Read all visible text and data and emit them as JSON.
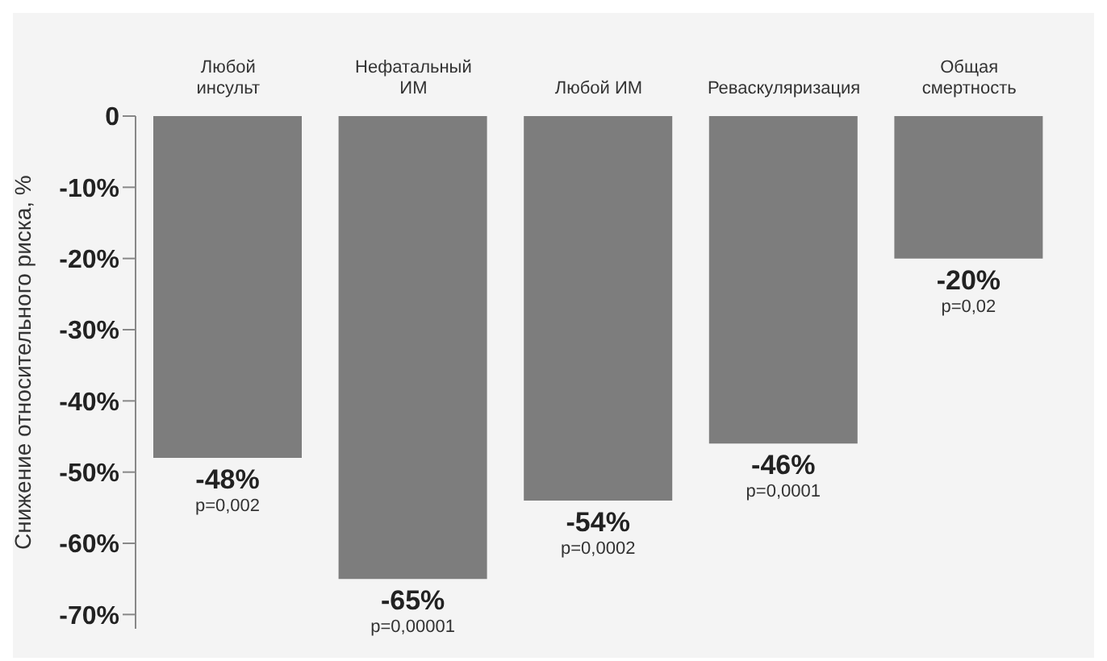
{
  "chart_data": {
    "type": "bar",
    "categories": [
      "Любой\nинсульт",
      "Нефатальный\nИМ",
      "Любой ИМ",
      "Реваскуляризация",
      "Общая\nсмертность"
    ],
    "values": [
      -48,
      -65,
      -54,
      -46,
      -20
    ],
    "color": "#7d7d7d",
    "value_labels": [
      "-48%",
      "-65%",
      "-54%",
      "-46%",
      "-20%"
    ],
    "ylabel": "Снижение относительного риска, %",
    "ylim": [
      -72,
      0
    ],
    "yticks": [
      {
        "value": -70,
        "label": "-70%"
      },
      {
        "value": -60,
        "label": "-60%"
      },
      {
        "value": -50,
        "label": "-50%"
      },
      {
        "value": -40,
        "label": "-40%"
      },
      {
        "value": -30,
        "label": "-30%"
      },
      {
        "value": -20,
        "label": "-20%"
      },
      {
        "value": -10,
        "label": "-10%"
      },
      0
    ],
    "annotations": [
      {
        "text": "p=0,002",
        "x": "Любой\nинсульт",
        "y": -48
      },
      {
        "text": "p=0,00001",
        "x": "Нефатальный\nИМ",
        "y": -65
      },
      {
        "text": "p=0,0002",
        "x": "Любой ИМ",
        "y": -54
      },
      {
        "text": "p=0,0001",
        "x": "Реваскуляризация",
        "y": -46
      },
      {
        "text": "p=0,02",
        "x": "Общая\nсмертность",
        "y": -20
      }
    ],
    "grid": false,
    "legend": false
  }
}
